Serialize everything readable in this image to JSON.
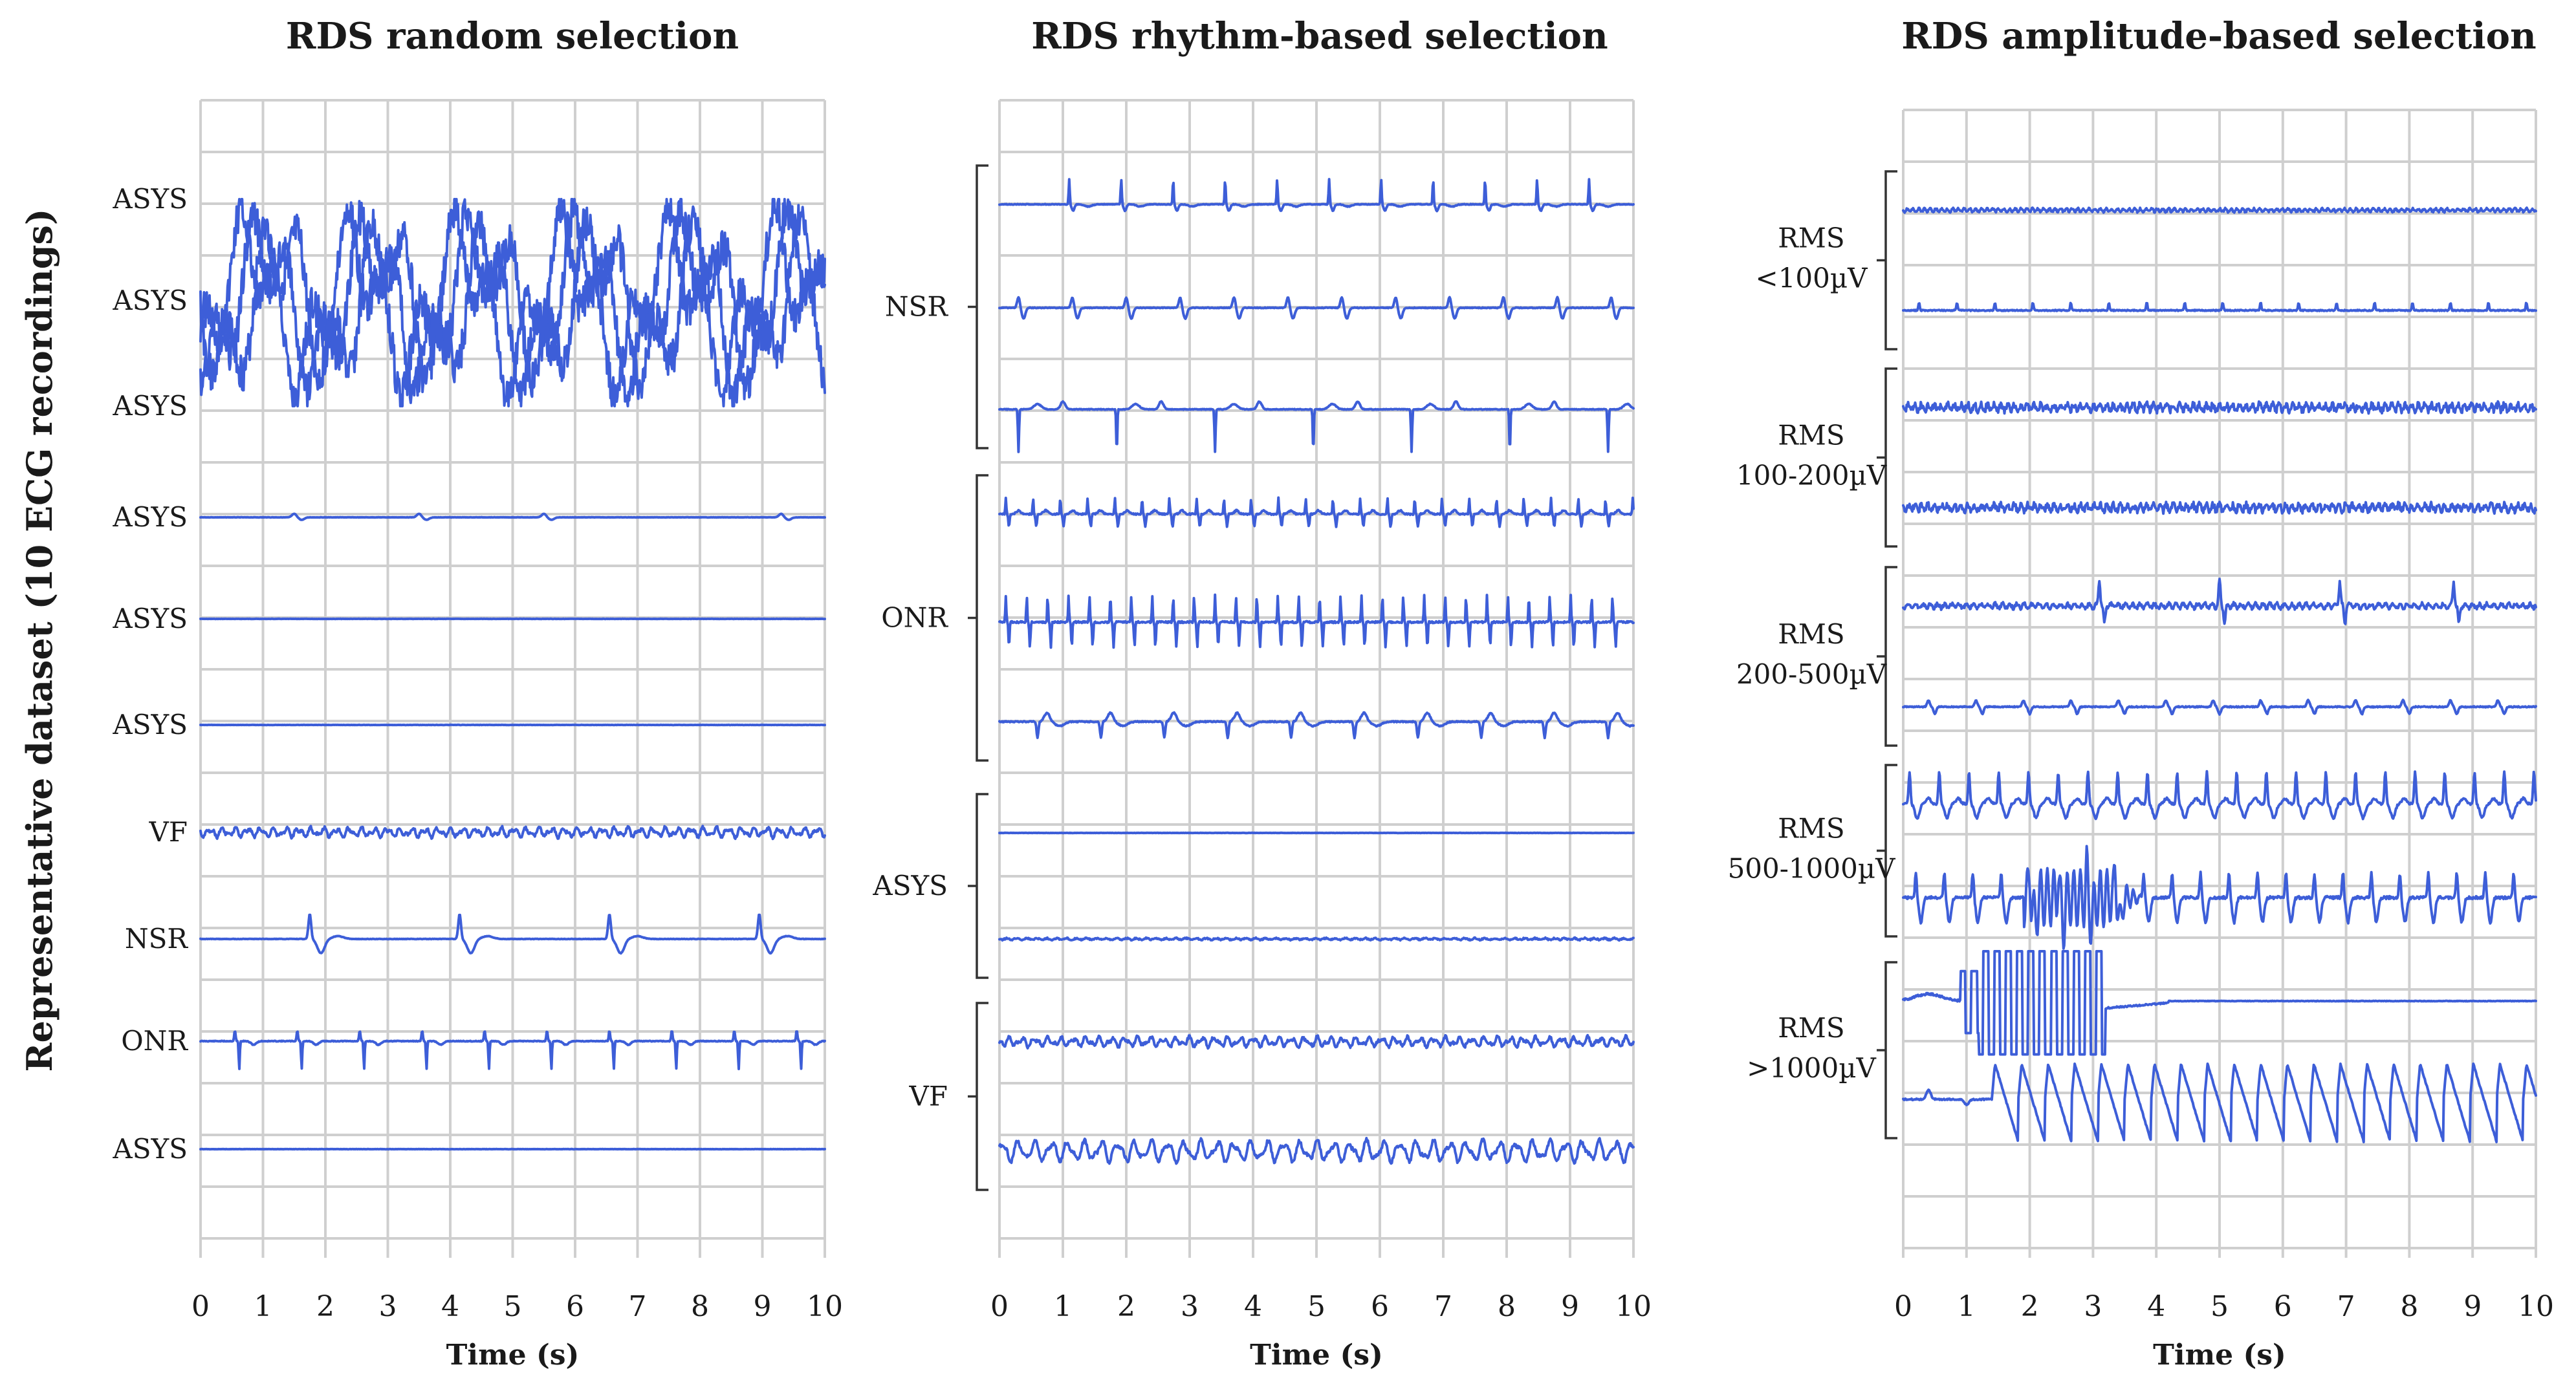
{
  "figure": {
    "ylabel": "Representative dataset (10 ECG recordings)",
    "trace_color": "#3d5ed8",
    "grid_color": "#cfcfcf"
  },
  "chart_data": [
    {
      "type": "line",
      "title": "RDS random selection",
      "xlabel": "Time (s)",
      "xlim": [
        0,
        10
      ],
      "x_ticks": [
        "0",
        "1",
        "2",
        "3",
        "4",
        "5",
        "6",
        "7",
        "8",
        "9",
        "10"
      ],
      "grid": true,
      "series": [
        {
          "name": "ASYS",
          "pattern": "saturated_clip",
          "row": 0
        },
        {
          "name": "ASYS",
          "pattern": "saturated_clip",
          "row": 1
        },
        {
          "name": "ASYS",
          "pattern": "saturated_clip",
          "row": 2
        },
        {
          "name": "ASYS",
          "pattern": "flat_small_bumps",
          "row": 3
        },
        {
          "name": "ASYS",
          "pattern": "flat",
          "row": 4
        },
        {
          "name": "ASYS",
          "pattern": "flat",
          "row": 5
        },
        {
          "name": "VF",
          "pattern": "vf_fine",
          "row": 6
        },
        {
          "name": "NSR",
          "pattern": "nsr_wide",
          "row": 7
        },
        {
          "name": "ONR",
          "pattern": "onr_spikes",
          "row": 8
        },
        {
          "name": "ASYS",
          "pattern": "flat",
          "row": 9
        }
      ],
      "row_labels": [
        "ASYS",
        "ASYS",
        "ASYS",
        "ASYS",
        "ASYS",
        "ASYS",
        "VF",
        "NSR",
        "ONR",
        "ASYS"
      ]
    },
    {
      "type": "line",
      "title": "RDS rhythm-based selection",
      "xlabel": "Time (s)",
      "xlim": [
        0,
        10
      ],
      "x_ticks": [
        "0",
        "1",
        "2",
        "3",
        "4",
        "5",
        "6",
        "7",
        "8",
        "9",
        "10"
      ],
      "grid": true,
      "groups": [
        {
          "label": "NSR",
          "rows": [
            0,
            1,
            2
          ]
        },
        {
          "label": "ONR",
          "rows": [
            3,
            4,
            5
          ]
        },
        {
          "label": "ASYS",
          "rows": [
            6,
            7
          ]
        },
        {
          "label": "VF",
          "rows": [
            8,
            9
          ]
        }
      ],
      "series": [
        {
          "name": "NSR",
          "pattern": "nsr_sharp",
          "row": 0
        },
        {
          "name": "NSR",
          "pattern": "nsr_biphasic",
          "row": 1
        },
        {
          "name": "NSR",
          "pattern": "nsr_down_spikes",
          "row": 2
        },
        {
          "name": "ONR",
          "pattern": "onr_fast",
          "row": 3
        },
        {
          "name": "ONR",
          "pattern": "onr_very_fast",
          "row": 4
        },
        {
          "name": "ONR",
          "pattern": "onr_wide",
          "row": 5
        },
        {
          "name": "ASYS",
          "pattern": "flat",
          "row": 6
        },
        {
          "name": "ASYS",
          "pattern": "flat_noise",
          "row": 7
        },
        {
          "name": "VF",
          "pattern": "vf_fine",
          "row": 8
        },
        {
          "name": "VF",
          "pattern": "vf_coarse",
          "row": 9
        }
      ]
    },
    {
      "type": "line",
      "title": "RDS amplitude-based selection",
      "xlabel": "Time (s)",
      "xlim": [
        0,
        10
      ],
      "x_ticks": [
        "0",
        "1",
        "2",
        "3",
        "4",
        "5",
        "6",
        "7",
        "8",
        "9",
        "10"
      ],
      "grid": true,
      "groups": [
        {
          "label_lines": [
            "RMS",
            "<100µV"
          ],
          "rows": [
            0,
            1
          ]
        },
        {
          "label_lines": [
            "RMS",
            "100-200µV"
          ],
          "rows": [
            2,
            3
          ]
        },
        {
          "label_lines": [
            "RMS",
            "200-500µV"
          ],
          "rows": [
            4,
            5
          ]
        },
        {
          "label_lines": [
            "RMS",
            "500-1000µV"
          ],
          "rows": [
            6,
            7
          ]
        },
        {
          "label_lines": [
            "RMS",
            ">1000µV"
          ],
          "rows": [
            8,
            9
          ]
        }
      ],
      "series": [
        {
          "name": "RMS <100µV",
          "pattern": "noise_small",
          "row": 0
        },
        {
          "name": "RMS <100µV",
          "pattern": "small_spikes",
          "row": 1
        },
        {
          "name": "RMS 100-200µV",
          "pattern": "noise_medium",
          "row": 2
        },
        {
          "name": "RMS 100-200µV",
          "pattern": "noise_medium",
          "row": 3
        },
        {
          "name": "RMS 200-500µV",
          "pattern": "noise_with_beats",
          "row": 4
        },
        {
          "name": "RMS 200-500µV",
          "pattern": "nsr_small",
          "row": 5
        },
        {
          "name": "RMS 500-1000µV",
          "pattern": "large_periodic",
          "row": 6
        },
        {
          "name": "RMS 500-1000µV",
          "pattern": "large_periodic_mixed",
          "row": 7
        },
        {
          "name": "RMS >1000µV",
          "pattern": "saturation_settle",
          "row": 8
        },
        {
          "name": "RMS >1000µV",
          "pattern": "large_downstrokes",
          "row": 9
        }
      ]
    }
  ]
}
